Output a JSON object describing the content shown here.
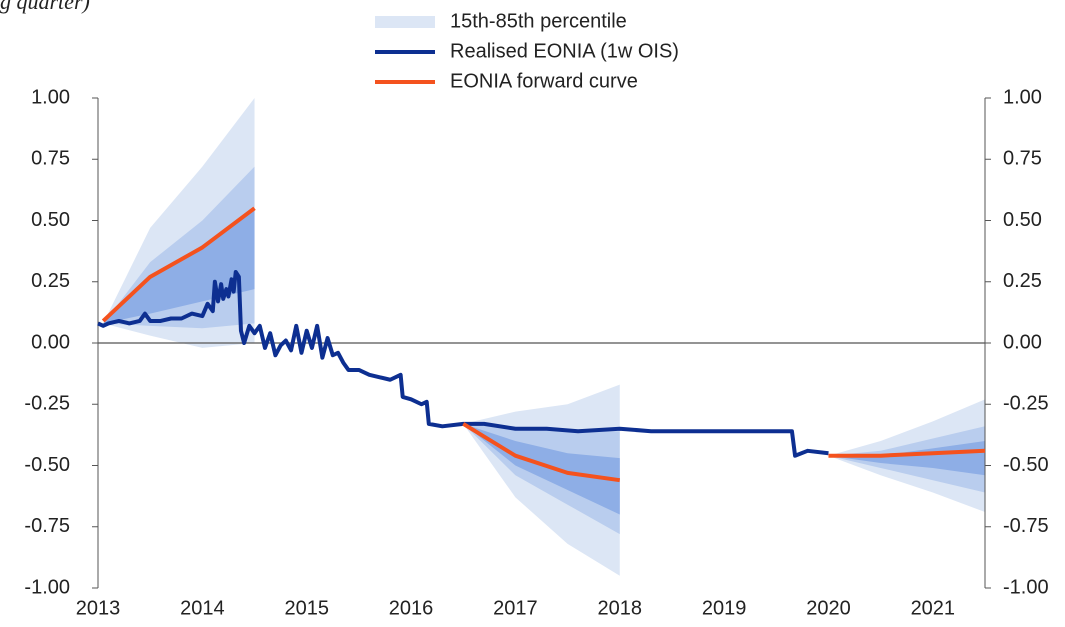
{
  "chart_data": {
    "type": "fan",
    "subtitle": "g quarter)",
    "xlim": [
      2013,
      2021.5
    ],
    "xticks": [
      2013,
      2014,
      2015,
      2016,
      2017,
      2018,
      2019,
      2020,
      2021
    ],
    "ylim": [
      -1,
      1
    ],
    "yticks": [
      {
        "value": -1,
        "label": "-1.00"
      },
      -0.75,
      {
        "value": -0.5,
        "label": "-0.50"
      },
      -0.25,
      {
        "value": 0,
        "label": "0.00"
      },
      0.25,
      {
        "value": 0.5,
        "label": "0.50"
      },
      0.75,
      {
        "value": 1,
        "label": "1.00"
      }
    ],
    "y2lim": [
      -1,
      1
    ],
    "y2ticks": [
      {
        "value": -1,
        "label": "-1.00"
      },
      -0.75,
      {
        "value": -0.5,
        "label": "-0.50"
      },
      -0.25,
      {
        "value": 0,
        "label": "0.00"
      },
      0.25,
      {
        "value": 0.5,
        "label": "0.50"
      },
      0.75,
      {
        "value": 1,
        "label": "1.00"
      }
    ],
    "band_name": "15th-85th percentile",
    "band_colors": [
      "#dce6f5",
      "#b9cdee",
      "#8eaee6"
    ],
    "realised": {
      "name": "Realised EONIA (1w OIS)",
      "color": "#0d2f91",
      "x": [
        2013.0,
        2013.05,
        2013.1,
        2013.2,
        2013.3,
        2013.4,
        2013.45,
        2013.5,
        2013.6,
        2013.7,
        2013.8,
        2013.9,
        2014.0,
        2014.05,
        2014.1,
        2014.12,
        2014.15,
        2014.18,
        2014.2,
        2014.23,
        2014.25,
        2014.28,
        2014.3,
        2014.32,
        2014.35,
        2014.37,
        2014.4,
        2014.45,
        2014.5,
        2014.55,
        2014.6,
        2014.65,
        2014.7,
        2014.75,
        2014.8,
        2014.85,
        2014.9,
        2014.95,
        2015.0,
        2015.05,
        2015.1,
        2015.15,
        2015.2,
        2015.25,
        2015.3,
        2015.35,
        2015.4,
        2015.5,
        2015.6,
        2015.7,
        2015.8,
        2015.9,
        2015.92,
        2016.0,
        2016.1,
        2016.15,
        2016.17,
        2016.3,
        2016.5,
        2016.7,
        2017.0,
        2017.3,
        2017.6,
        2018.0,
        2018.3,
        2018.6,
        2019.0,
        2019.3,
        2019.6,
        2019.65,
        2019.68,
        2019.8,
        2020.0
      ],
      "values": [
        0.08,
        0.07,
        0.08,
        0.09,
        0.08,
        0.09,
        0.12,
        0.09,
        0.09,
        0.1,
        0.1,
        0.12,
        0.11,
        0.16,
        0.13,
        0.25,
        0.17,
        0.24,
        0.18,
        0.22,
        0.19,
        0.26,
        0.21,
        0.29,
        0.27,
        0.05,
        0.0,
        0.07,
        0.04,
        0.07,
        -0.02,
        0.04,
        -0.05,
        -0.01,
        0.01,
        -0.03,
        0.07,
        -0.04,
        0.05,
        -0.02,
        0.07,
        -0.06,
        0.02,
        -0.05,
        -0.04,
        -0.08,
        -0.11,
        -0.11,
        -0.13,
        -0.14,
        -0.15,
        -0.13,
        -0.22,
        -0.23,
        -0.25,
        -0.24,
        -0.33,
        -0.34,
        -0.33,
        -0.33,
        -0.35,
        -0.35,
        -0.36,
        -0.35,
        -0.36,
        -0.36,
        -0.36,
        -0.36,
        -0.36,
        -0.36,
        -0.46,
        -0.44,
        -0.45
      ]
    },
    "forward": {
      "name": "EONIA forward curve",
      "color": "#f4521e"
    },
    "fans": [
      {
        "x": [
          2013.05,
          2013.5,
          2014.0,
          2014.5
        ],
        "bands": [
          {
            "upper": [
              0.08,
              0.47,
              0.72,
              1.0
            ],
            "lower": [
              0.08,
              0.03,
              -0.02,
              0.0
            ]
          },
          {
            "upper": [
              0.08,
              0.33,
              0.5,
              0.72
            ],
            "lower": [
              0.08,
              0.07,
              0.06,
              0.08
            ]
          },
          {
            "upper": [
              0.08,
              0.27,
              0.4,
              0.55
            ],
            "lower": [
              0.08,
              0.12,
              0.17,
              0.22
            ]
          }
        ],
        "forward": [
          0.09,
          0.27,
          0.39,
          0.55
        ]
      },
      {
        "x": [
          2016.5,
          2017.0,
          2017.5,
          2018.0
        ],
        "bands": [
          {
            "upper": [
              -0.33,
              -0.28,
              -0.25,
              -0.17
            ],
            "lower": [
              -0.33,
              -0.63,
              -0.82,
              -0.95
            ]
          },
          {
            "upper": [
              -0.33,
              -0.35,
              -0.36,
              -0.36
            ],
            "lower": [
              -0.33,
              -0.54,
              -0.66,
              -0.78
            ]
          },
          {
            "upper": [
              -0.33,
              -0.4,
              -0.45,
              -0.47
            ],
            "lower": [
              -0.33,
              -0.5,
              -0.6,
              -0.7
            ]
          }
        ],
        "forward": [
          -0.33,
          -0.46,
          -0.53,
          -0.56
        ]
      },
      {
        "x": [
          2020.0,
          2020.5,
          2021.0,
          2021.5
        ],
        "bands": [
          {
            "upper": [
              -0.46,
              -0.4,
              -0.32,
              -0.23
            ],
            "lower": [
              -0.46,
              -0.54,
              -0.61,
              -0.69
            ]
          },
          {
            "upper": [
              -0.46,
              -0.44,
              -0.39,
              -0.34
            ],
            "lower": [
              -0.46,
              -0.51,
              -0.56,
              -0.61
            ]
          },
          {
            "upper": [
              -0.46,
              -0.46,
              -0.43,
              -0.4
            ],
            "lower": [
              -0.46,
              -0.49,
              -0.51,
              -0.54
            ]
          }
        ],
        "forward": [
          -0.46,
          -0.46,
          -0.45,
          -0.44
        ]
      }
    ]
  }
}
